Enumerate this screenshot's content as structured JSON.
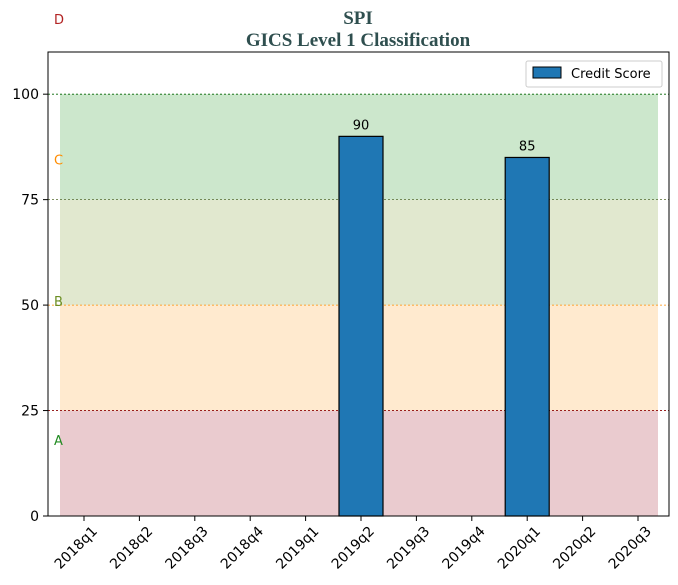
{
  "chart_data": {
    "type": "bar",
    "title": "SPI",
    "subtitle": "GICS Level 1 Classification",
    "categories": [
      "2018q1",
      "2018q2",
      "2018q3",
      "2018q4",
      "2019q1",
      "2019q2",
      "2019q3",
      "2019q4",
      "2020q1",
      "2020q2",
      "2020q3"
    ],
    "series": [
      {
        "name": "Credit Score",
        "values": [
          null,
          null,
          null,
          null,
          null,
          90,
          null,
          null,
          85,
          null,
          null
        ],
        "color": "#1f77b4"
      }
    ],
    "data_labels": [
      "",
      "",
      "",
      "",
      "",
      "90",
      "",
      "",
      "85",
      "",
      ""
    ],
    "ylim": [
      0,
      110
    ],
    "yticks": [
      0,
      25,
      50,
      75,
      100
    ],
    "ytick_labels": [
      "0",
      "25",
      "50",
      "75",
      "100"
    ],
    "legend": {
      "placement": "top-right",
      "entries": [
        "Credit Score"
      ]
    },
    "bands": [
      {
        "label": "A",
        "from": 0,
        "to": 25,
        "fill": "#d9a0a8",
        "line": "#8b0000",
        "label_color": "#228b22",
        "label_y": 18
      },
      {
        "label": "B",
        "from": 25,
        "to": 50,
        "fill": "#ffd9a8",
        "line": "#ff8c00",
        "label_color": "#6b8e23",
        "label_y": 51
      },
      {
        "label": "C",
        "from": 50,
        "to": 75,
        "fill": "#c8d6a8",
        "line": "#556b2f",
        "label_color": "#ff8c00",
        "label_y": 84.5
      },
      {
        "label": "",
        "from": 75,
        "to": 100,
        "fill": "#a3d4a3",
        "line": "#006400",
        "label_color": "#000000",
        "label_y": 0
      }
    ],
    "extra_label": {
      "label": "D",
      "color": "#b22222"
    }
  }
}
